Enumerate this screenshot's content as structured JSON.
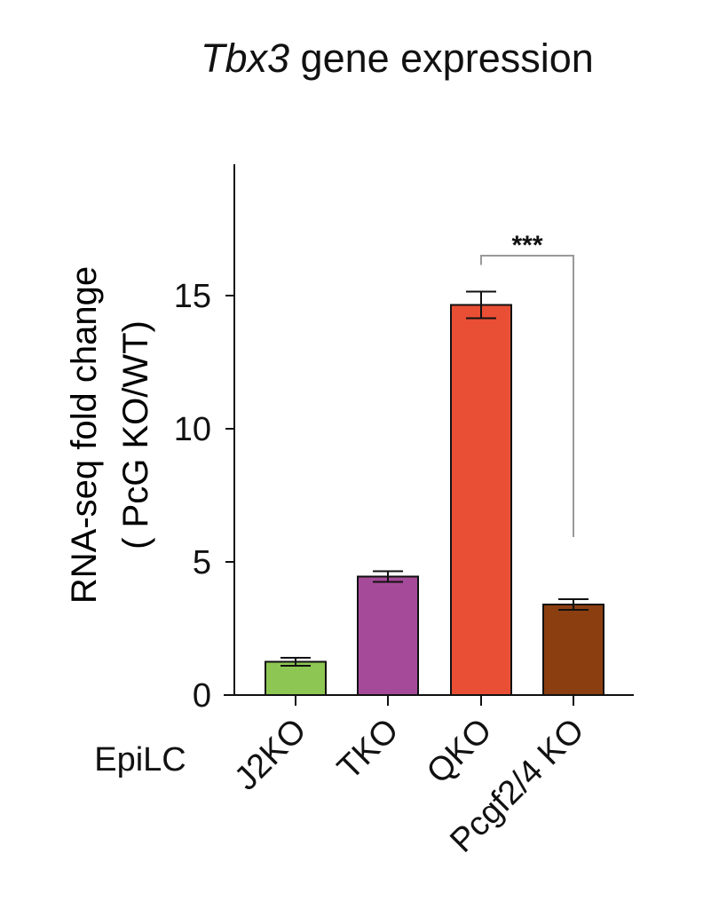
{
  "chart_data": {
    "type": "bar",
    "title_italic": "Tbx3",
    "title_rest": " gene expression",
    "ylabel_line1": "RNA-seq fold change",
    "ylabel_line2": "( PcG KO/WT)",
    "group_label": "EpiLC",
    "categories": [
      "J2KO",
      "TKO",
      "QKO",
      "Pcgf2/4 KO"
    ],
    "values": [
      1.25,
      4.45,
      14.65,
      3.4
    ],
    "errors": [
      0.15,
      0.2,
      0.5,
      0.2
    ],
    "colors": [
      "#8dc652",
      "#a54a99",
      "#e94f35",
      "#8b3e10"
    ],
    "yticks": [
      0,
      5,
      10,
      15
    ],
    "ylim": [
      0,
      20
    ],
    "significance": {
      "from": "QKO",
      "to": "Pcgf2/4 KO",
      "label": "***"
    }
  }
}
